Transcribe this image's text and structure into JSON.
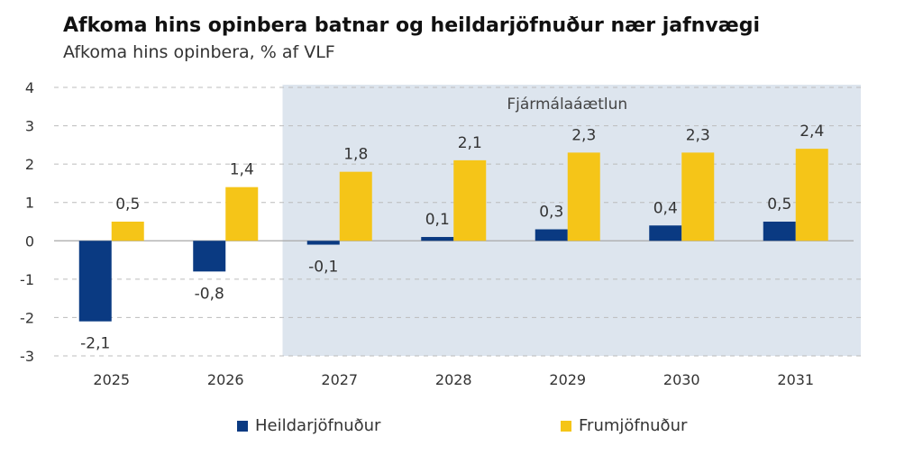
{
  "chart_data": {
    "type": "bar",
    "title": "Afkoma hins opinbera batnar og heildarjöfnuður nær jafnvægi",
    "subtitle": "Afkoma hins opinbera, % af VLF",
    "categories": [
      "2025",
      "2026",
      "2027",
      "2028",
      "2029",
      "2030",
      "2031"
    ],
    "series": [
      {
        "name": "Heildarjöfnuður",
        "values": [
          -2.1,
          -0.8,
          -0.1,
          0.1,
          0.3,
          0.4,
          0.5
        ],
        "labels": [
          "-2,1",
          "-0,8",
          "-0,1",
          "0,1",
          "0,3",
          "0,4",
          "0,5"
        ],
        "color": "#0a3a82"
      },
      {
        "name": "Frumjöfnuður",
        "values": [
          0.5,
          1.4,
          1.8,
          2.1,
          2.3,
          2.3,
          2.4
        ],
        "labels": [
          "0,5",
          "1,4",
          "1,8",
          "2,1",
          "2,3",
          "2,3",
          "2,4"
        ],
        "color": "#f5c518"
      }
    ],
    "ylim": [
      -3,
      4
    ],
    "yticks": [
      4,
      3,
      2,
      1,
      0,
      -1,
      -2,
      -3
    ],
    "ytick_labels": [
      "4",
      "3",
      "2",
      "1",
      "0",
      "-1",
      "-2",
      "-3"
    ],
    "grid": true,
    "shaded_region": {
      "label": "Fjármálaáætlun",
      "from_category": "2027",
      "to_category": "2031",
      "color": "#dde5ee"
    },
    "legend_position": "bottom"
  }
}
